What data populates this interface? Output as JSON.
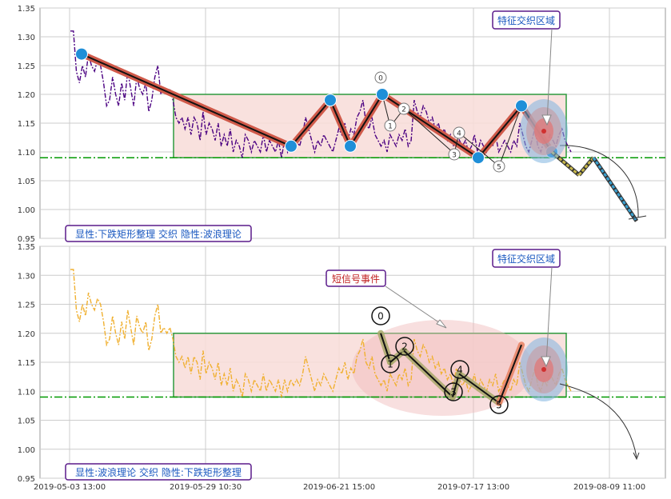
{
  "colors": {
    "series_top": "#4b0082",
    "series_bottom": "#f0b030",
    "grid": "#cccccc",
    "support": "#009900",
    "box": "#2e9a3e",
    "box_fill": "#f8dcd8",
    "wave": "#d05a4a",
    "pivot": "#1f8fd8",
    "label_border": "#5a1a8a",
    "label_text": "#1a58c0",
    "event_text": "#c02020"
  },
  "x_ticks": [
    "2019-05-03 13:00",
    "2019-05-29 10:30",
    "2019-06-21 15:00",
    "2019-07-17 13:00",
    "2019-08-09 11:00"
  ],
  "y_ticks": [
    "1.35",
    "1.30",
    "1.25",
    "1.20",
    "1.15",
    "1.10",
    "1.05",
    "1.00",
    "0.95"
  ],
  "chart_data": [
    {
      "type": "line",
      "panel": "top",
      "ylim": [
        0.95,
        1.35
      ],
      "x_axis": "bar index (time)",
      "series": [
        {
          "values": [
            1.31,
            1.31,
            1.24,
            1.22,
            1.25,
            1.23,
            1.27,
            1.25,
            1.24,
            1.26,
            1.25,
            1.22,
            1.18,
            1.19,
            1.23,
            1.2,
            1.18,
            1.22,
            1.19,
            1.24,
            1.21,
            1.18,
            1.23,
            1.21,
            1.2,
            1.22,
            1.17,
            1.19,
            1.23,
            1.25,
            1.2,
            1.21,
            1.2,
            1.21,
            1.19,
            1.16,
            1.15,
            1.16,
            1.14,
            1.16,
            1.13,
            1.16,
            1.15,
            1.12,
            1.17,
            1.13,
            1.15,
            1.14,
            1.12,
            1.15,
            1.11,
            1.13,
            1.11,
            1.14,
            1.1,
            1.12,
            1.11,
            1.09,
            1.13,
            1.12,
            1.1,
            1.12,
            1.11,
            1.1,
            1.13,
            1.1,
            1.12,
            1.11,
            1.1,
            1.12,
            1.09,
            1.12,
            1.1,
            1.12,
            1.11,
            1.12,
            1.11,
            1.13,
            1.16,
            1.14,
            1.12,
            1.1,
            1.12,
            1.11,
            1.13,
            1.12,
            1.11,
            1.1,
            1.12,
            1.14,
            1.13,
            1.15,
            1.12,
            1.14,
            1.13,
            1.16,
            1.17,
            1.19,
            1.15,
            1.14,
            1.16,
            1.13,
            1.12,
            1.11,
            1.12,
            1.1,
            1.13,
            1.12,
            1.11,
            1.13,
            1.12,
            1.14,
            1.11,
            1.12,
            1.19,
            1.17,
            1.16,
            1.18,
            1.17,
            1.15,
            1.16,
            1.14,
            1.15,
            1.13,
            1.14,
            1.12,
            1.13,
            1.11,
            1.14,
            1.12,
            1.11,
            1.12,
            1.1,
            1.11,
            1.13,
            1.1,
            1.12,
            1.11,
            1.1,
            1.12,
            1.11,
            1.13,
            1.1,
            1.11,
            1.12,
            1.11,
            1.1,
            1.12,
            1.11,
            1.15,
            1.13,
            1.11,
            1.1,
            1.12,
            1.14,
            1.11,
            1.1,
            1.12,
            1.11,
            1.13,
            1.12,
            1.11,
            1.13,
            1.14,
            1.12,
            1.11,
            1.1
          ]
        }
      ],
      "box_range": [
        1.09,
        1.2
      ],
      "support_level": 1.09,
      "pivots": [
        {
          "label": "",
          "y": 1.27
        },
        {
          "label": "",
          "y": 1.11
        },
        {
          "label": "",
          "y": 1.19
        },
        {
          "label": "",
          "y": 1.11
        },
        {
          "label": "",
          "y": 1.2
        },
        {
          "label": "",
          "y": 1.09
        },
        {
          "label": "",
          "y": 1.18
        },
        {
          "label": "",
          "y": 1.1
        }
      ],
      "wave_labels": [
        "0",
        "1",
        "2",
        "3",
        "4",
        "5"
      ],
      "projection": [
        1.1,
        1.06,
        1.09,
        0.98
      ],
      "legend": "显性:下跌矩形整理 交织 隐性:波浪理论",
      "annotation": "特征交织区域"
    },
    {
      "type": "line",
      "panel": "bottom",
      "ylim": [
        0.95,
        1.35
      ],
      "x_axis": "bar index (time)",
      "series": [
        {
          "values": [
            1.31,
            1.31,
            1.24,
            1.22,
            1.25,
            1.23,
            1.27,
            1.25,
            1.24,
            1.26,
            1.25,
            1.22,
            1.18,
            1.19,
            1.23,
            1.2,
            1.18,
            1.22,
            1.19,
            1.24,
            1.21,
            1.18,
            1.23,
            1.21,
            1.2,
            1.22,
            1.17,
            1.19,
            1.23,
            1.25,
            1.2,
            1.21,
            1.2,
            1.21,
            1.19,
            1.16,
            1.15,
            1.16,
            1.14,
            1.16,
            1.13,
            1.16,
            1.15,
            1.12,
            1.17,
            1.13,
            1.15,
            1.14,
            1.12,
            1.15,
            1.11,
            1.13,
            1.11,
            1.14,
            1.1,
            1.12,
            1.11,
            1.09,
            1.13,
            1.12,
            1.1,
            1.12,
            1.11,
            1.1,
            1.13,
            1.1,
            1.12,
            1.11,
            1.1,
            1.12,
            1.09,
            1.12,
            1.1,
            1.12,
            1.11,
            1.12,
            1.11,
            1.13,
            1.16,
            1.14,
            1.12,
            1.1,
            1.12,
            1.11,
            1.13,
            1.12,
            1.11,
            1.1,
            1.12,
            1.14,
            1.13,
            1.15,
            1.12,
            1.14,
            1.13,
            1.16,
            1.17,
            1.19,
            1.15,
            1.14,
            1.16,
            1.13,
            1.12,
            1.11,
            1.12,
            1.1,
            1.13,
            1.12,
            1.11,
            1.13,
            1.12,
            1.14,
            1.11,
            1.12,
            1.19,
            1.17,
            1.16,
            1.18,
            1.17,
            1.15,
            1.16,
            1.14,
            1.15,
            1.13,
            1.14,
            1.12,
            1.13,
            1.11,
            1.14,
            1.12,
            1.11,
            1.12,
            1.1,
            1.11,
            1.13,
            1.1,
            1.12,
            1.11,
            1.1,
            1.12,
            1.11,
            1.13,
            1.1,
            1.11,
            1.12,
            1.11,
            1.1,
            1.12,
            1.11,
            1.15,
            1.13,
            1.11,
            1.1,
            1.12,
            1.14,
            1.11,
            1.1,
            1.12,
            1.11,
            1.13,
            1.12,
            1.11,
            1.13,
            1.14,
            1.12,
            1.11,
            1.1
          ]
        }
      ],
      "box_range": [
        1.09,
        1.2
      ],
      "support_level": 1.09,
      "wave_labels": [
        "0",
        "1",
        "2",
        "3",
        "4",
        "5"
      ],
      "wave_points": [
        1.2,
        1.15,
        1.17,
        1.09,
        1.13,
        1.08,
        1.18
      ],
      "legend": "显性:波浪理论 交织 隐性:下跌矩形整理",
      "annotation": "特征交织区域",
      "event_label": "短信号事件"
    }
  ]
}
